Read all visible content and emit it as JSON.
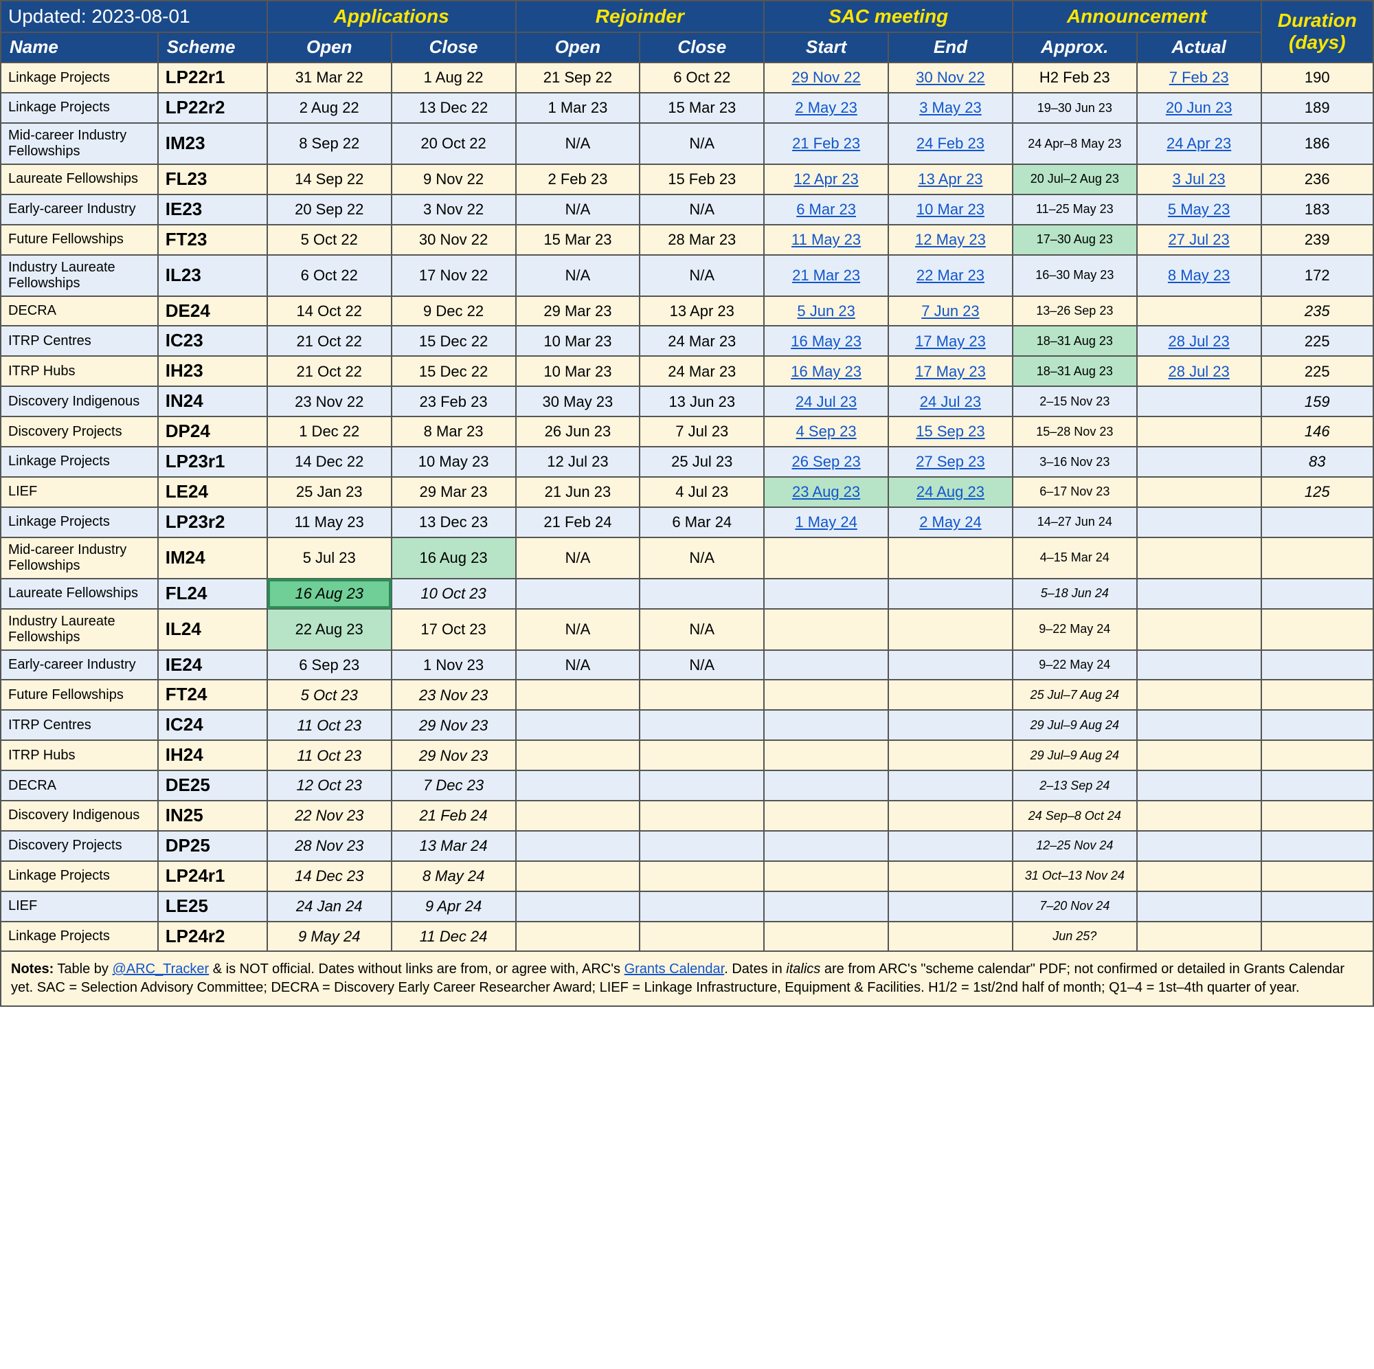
{
  "header": {
    "updated_label": "Updated: 2023-08-01",
    "groups": {
      "applications": "Applications",
      "rejoinder": "Rejoinder",
      "sac": "SAC meeting",
      "announcement": "Announcement",
      "duration": "Duration (days)"
    },
    "sub": {
      "name": "Name",
      "scheme": "Scheme",
      "open": "Open",
      "close": "Close",
      "start": "Start",
      "end": "End",
      "approx": "Approx.",
      "actual": "Actual"
    }
  },
  "colors": {
    "header_bg": "#1a4a8a",
    "row_cream": "#fdf5dc",
    "row_blue": "#e5eef8",
    "link": "#1155cc",
    "hl_light": "#b7e4c7",
    "hl_dark": "#6fcf97",
    "yellow": "#ffe600"
  },
  "footer": {
    "text_before": "Notes:",
    "text1": " Table by ",
    "link1": "@ARC_Tracker",
    "text2": " & is NOT official. Dates without links are from, or agree with, ARC's ",
    "link2": "Grants Calendar",
    "text3": ". Dates in ",
    "italics_word": "italics",
    "text4": " are from ARC's \"scheme calendar\" PDF; not confirmed or detailed in Grants Calendar yet. SAC = Selection Advisory Committee; DECRA = Discovery Early Career Researcher Award; LIEF = Linkage Infrastructure, Equipment & Facilities. H1/2 = 1st/2nd half of month; Q1–4 = 1st–4th quarter of year."
  },
  "rows": [
    {
      "row": "cream",
      "name": "Linkage Projects",
      "scheme": "LP22r1",
      "cells": [
        {
          "t": "31 Mar 22"
        },
        {
          "t": "1 Aug 22"
        },
        {
          "t": "21 Sep 22"
        },
        {
          "t": "6 Oct 22"
        },
        {
          "t": "29 Nov 22",
          "link": true
        },
        {
          "t": "30 Nov 22",
          "link": true
        },
        {
          "t": "H2 Feb 23"
        },
        {
          "t": "7 Feb 23",
          "link": true
        },
        {
          "t": "190"
        }
      ]
    },
    {
      "row": "blue",
      "name": "Linkage Projects",
      "scheme": "LP22r2",
      "cells": [
        {
          "t": "2 Aug 22"
        },
        {
          "t": "13 Dec 22"
        },
        {
          "t": "1 Mar 23"
        },
        {
          "t": "15 Mar 23"
        },
        {
          "t": "2 May 23",
          "link": true
        },
        {
          "t": "3 May 23",
          "link": true
        },
        {
          "t": "19–30 Jun 23",
          "small": true
        },
        {
          "t": "20 Jun 23",
          "link": true
        },
        {
          "t": "189"
        }
      ]
    },
    {
      "row": "blue",
      "name": "Mid-career Industry Fellowships",
      "scheme": "IM23",
      "cells": [
        {
          "t": "8 Sep 22"
        },
        {
          "t": "20 Oct 22"
        },
        {
          "t": "N/A"
        },
        {
          "t": "N/A"
        },
        {
          "t": "21 Feb 23",
          "link": true
        },
        {
          "t": "24 Feb 23",
          "link": true
        },
        {
          "t": "24 Apr–8 May 23",
          "small": true
        },
        {
          "t": "24 Apr 23",
          "link": true
        },
        {
          "t": "186"
        }
      ]
    },
    {
      "row": "cream",
      "name": "Laureate Fellowships",
      "scheme": "FL23",
      "cells": [
        {
          "t": "14 Sep 22"
        },
        {
          "t": "9 Nov 22"
        },
        {
          "t": "2 Feb 23"
        },
        {
          "t": "15 Feb 23"
        },
        {
          "t": "12 Apr 23",
          "link": true
        },
        {
          "t": "13 Apr 23",
          "link": true
        },
        {
          "t": "20 Jul–2 Aug 23",
          "small": true,
          "hl": "light"
        },
        {
          "t": "3 Jul 23",
          "link": true
        },
        {
          "t": "236"
        }
      ]
    },
    {
      "row": "blue",
      "name": "Early-career Industry",
      "scheme": "IE23",
      "cells": [
        {
          "t": "20 Sep 22"
        },
        {
          "t": "3 Nov 22"
        },
        {
          "t": "N/A"
        },
        {
          "t": "N/A"
        },
        {
          "t": "6 Mar 23",
          "link": true
        },
        {
          "t": "10 Mar 23",
          "link": true
        },
        {
          "t": "11–25 May 23",
          "small": true
        },
        {
          "t": "5 May 23",
          "link": true
        },
        {
          "t": "183"
        }
      ]
    },
    {
      "row": "cream",
      "name": "Future Fellowships",
      "scheme": "FT23",
      "cells": [
        {
          "t": "5 Oct 22"
        },
        {
          "t": "30 Nov 22"
        },
        {
          "t": "15 Mar 23"
        },
        {
          "t": "28 Mar 23"
        },
        {
          "t": "11 May 23",
          "link": true
        },
        {
          "t": "12 May 23",
          "link": true
        },
        {
          "t": "17–30 Aug 23",
          "small": true,
          "hl": "light"
        },
        {
          "t": "27 Jul 23",
          "link": true
        },
        {
          "t": "239"
        }
      ]
    },
    {
      "row": "blue",
      "name": "Industry Laureate Fellowships",
      "scheme": "IL23",
      "cells": [
        {
          "t": "6 Oct 22"
        },
        {
          "t": "17 Nov 22"
        },
        {
          "t": "N/A"
        },
        {
          "t": "N/A"
        },
        {
          "t": "21 Mar 23",
          "link": true
        },
        {
          "t": "22 Mar 23",
          "link": true
        },
        {
          "t": "16–30 May 23",
          "small": true
        },
        {
          "t": "8 May 23",
          "link": true
        },
        {
          "t": "172"
        }
      ]
    },
    {
      "row": "cream",
      "name": "DECRA",
      "scheme": "DE24",
      "cells": [
        {
          "t": "14 Oct 22"
        },
        {
          "t": "9 Dec 22"
        },
        {
          "t": "29 Mar 23"
        },
        {
          "t": "13 Apr 23"
        },
        {
          "t": "5 Jun 23",
          "link": true
        },
        {
          "t": "7 Jun 23",
          "link": true
        },
        {
          "t": "13–26 Sep 23",
          "small": true
        },
        {
          "t": ""
        },
        {
          "t": "235",
          "italic": true
        }
      ]
    },
    {
      "row": "blue",
      "name": "ITRP Centres",
      "scheme": "IC23",
      "cells": [
        {
          "t": "21 Oct 22"
        },
        {
          "t": "15 Dec 22"
        },
        {
          "t": "10 Mar 23"
        },
        {
          "t": "24 Mar 23"
        },
        {
          "t": "16 May 23",
          "link": true
        },
        {
          "t": "17 May 23",
          "link": true
        },
        {
          "t": "18–31 Aug 23",
          "small": true,
          "hl": "light"
        },
        {
          "t": "28 Jul 23",
          "link": true
        },
        {
          "t": "225"
        }
      ]
    },
    {
      "row": "cream",
      "name": "ITRP Hubs",
      "scheme": "IH23",
      "cells": [
        {
          "t": "21 Oct 22"
        },
        {
          "t": "15 Dec 22"
        },
        {
          "t": "10 Mar 23"
        },
        {
          "t": "24 Mar 23"
        },
        {
          "t": "16 May 23",
          "link": true
        },
        {
          "t": "17 May 23",
          "link": true
        },
        {
          "t": "18–31 Aug 23",
          "small": true,
          "hl": "light"
        },
        {
          "t": "28 Jul 23",
          "link": true
        },
        {
          "t": "225"
        }
      ]
    },
    {
      "row": "blue",
      "name": "Discovery Indigenous",
      "scheme": "IN24",
      "cells": [
        {
          "t": "23 Nov 22"
        },
        {
          "t": "23 Feb 23"
        },
        {
          "t": "30 May 23"
        },
        {
          "t": "13 Jun 23"
        },
        {
          "t": "24 Jul 23",
          "link": true
        },
        {
          "t": "24 Jul 23",
          "link": true
        },
        {
          "t": "2–15 Nov 23",
          "small": true
        },
        {
          "t": ""
        },
        {
          "t": "159",
          "italic": true
        }
      ]
    },
    {
      "row": "cream",
      "name": "Discovery Projects",
      "scheme": "DP24",
      "cells": [
        {
          "t": "1 Dec 22"
        },
        {
          "t": "8 Mar 23"
        },
        {
          "t": "26 Jun 23"
        },
        {
          "t": "7 Jul 23"
        },
        {
          "t": "4 Sep 23",
          "link": true
        },
        {
          "t": "15 Sep 23",
          "link": true
        },
        {
          "t": "15–28 Nov 23",
          "small": true
        },
        {
          "t": ""
        },
        {
          "t": "146",
          "italic": true
        }
      ]
    },
    {
      "row": "blue",
      "name": "Linkage Projects",
      "scheme": "LP23r1",
      "cells": [
        {
          "t": "14 Dec 22"
        },
        {
          "t": "10 May 23"
        },
        {
          "t": "12 Jul 23"
        },
        {
          "t": "25 Jul 23"
        },
        {
          "t": "26 Sep 23",
          "link": true
        },
        {
          "t": "27 Sep 23",
          "link": true
        },
        {
          "t": "3–16 Nov 23",
          "small": true
        },
        {
          "t": ""
        },
        {
          "t": "83",
          "italic": true
        }
      ]
    },
    {
      "row": "cream",
      "name": "LIEF",
      "scheme": "LE24",
      "cells": [
        {
          "t": "25 Jan 23"
        },
        {
          "t": "29 Mar 23"
        },
        {
          "t": "21 Jun 23"
        },
        {
          "t": "4 Jul 23"
        },
        {
          "t": "23 Aug 23",
          "link": true,
          "hl": "light"
        },
        {
          "t": "24 Aug 23",
          "link": true,
          "hl": "light"
        },
        {
          "t": "6–17 Nov 23",
          "small": true
        },
        {
          "t": ""
        },
        {
          "t": "125",
          "italic": true
        }
      ]
    },
    {
      "row": "blue",
      "name": "Linkage Projects",
      "scheme": "LP23r2",
      "cells": [
        {
          "t": "11 May 23"
        },
        {
          "t": "13 Dec 23"
        },
        {
          "t": "21 Feb 24"
        },
        {
          "t": "6 Mar 24"
        },
        {
          "t": "1 May 24",
          "link": true
        },
        {
          "t": "2 May 24",
          "link": true
        },
        {
          "t": "14–27 Jun 24",
          "small": true
        },
        {
          "t": ""
        },
        {
          "t": ""
        }
      ]
    },
    {
      "row": "cream",
      "name": "Mid-career Industry Fellowships",
      "scheme": "IM24",
      "cells": [
        {
          "t": "5 Jul 23"
        },
        {
          "t": "16 Aug 23",
          "hl": "light"
        },
        {
          "t": "N/A"
        },
        {
          "t": "N/A"
        },
        {
          "t": ""
        },
        {
          "t": ""
        },
        {
          "t": "4–15 Mar 24",
          "small": true
        },
        {
          "t": ""
        },
        {
          "t": ""
        }
      ]
    },
    {
      "row": "blue",
      "name": "Laureate Fellowships",
      "scheme": "FL24",
      "cells": [
        {
          "t": "16 Aug 23",
          "italic": true,
          "hl": "dark"
        },
        {
          "t": "10 Oct 23",
          "italic": true
        },
        {
          "t": ""
        },
        {
          "t": ""
        },
        {
          "t": ""
        },
        {
          "t": ""
        },
        {
          "t": "5–18 Jun 24",
          "small": true,
          "italic": true
        },
        {
          "t": ""
        },
        {
          "t": ""
        }
      ]
    },
    {
      "row": "cream",
      "name": "Industry Laureate Fellowships",
      "scheme": "IL24",
      "cells": [
        {
          "t": "22 Aug 23",
          "hl": "light"
        },
        {
          "t": "17 Oct 23"
        },
        {
          "t": "N/A"
        },
        {
          "t": "N/A"
        },
        {
          "t": ""
        },
        {
          "t": ""
        },
        {
          "t": "9–22 May 24",
          "small": true
        },
        {
          "t": ""
        },
        {
          "t": ""
        }
      ]
    },
    {
      "row": "blue",
      "name": "Early-career Industry",
      "scheme": "IE24",
      "cells": [
        {
          "t": "6 Sep 23"
        },
        {
          "t": "1 Nov 23"
        },
        {
          "t": "N/A"
        },
        {
          "t": "N/A"
        },
        {
          "t": ""
        },
        {
          "t": ""
        },
        {
          "t": "9–22 May 24",
          "small": true
        },
        {
          "t": ""
        },
        {
          "t": ""
        }
      ]
    },
    {
      "row": "cream",
      "name": "Future Fellowships",
      "scheme": "FT24",
      "cells": [
        {
          "t": "5 Oct 23",
          "italic": true
        },
        {
          "t": "23 Nov 23",
          "italic": true
        },
        {
          "t": ""
        },
        {
          "t": ""
        },
        {
          "t": ""
        },
        {
          "t": ""
        },
        {
          "t": "25 Jul–7 Aug 24",
          "small": true,
          "italic": true
        },
        {
          "t": ""
        },
        {
          "t": ""
        }
      ]
    },
    {
      "row": "blue",
      "name": "ITRP Centres",
      "scheme": "IC24",
      "cells": [
        {
          "t": "11 Oct 23",
          "italic": true
        },
        {
          "t": "29 Nov 23",
          "italic": true
        },
        {
          "t": ""
        },
        {
          "t": ""
        },
        {
          "t": ""
        },
        {
          "t": ""
        },
        {
          "t": "29 Jul–9 Aug 24",
          "small": true,
          "italic": true
        },
        {
          "t": ""
        },
        {
          "t": ""
        }
      ]
    },
    {
      "row": "cream",
      "name": "ITRP Hubs",
      "scheme": "IH24",
      "cells": [
        {
          "t": "11 Oct 23",
          "italic": true
        },
        {
          "t": "29 Nov 23",
          "italic": true
        },
        {
          "t": ""
        },
        {
          "t": ""
        },
        {
          "t": ""
        },
        {
          "t": ""
        },
        {
          "t": "29 Jul–9 Aug 24",
          "small": true,
          "italic": true
        },
        {
          "t": ""
        },
        {
          "t": ""
        }
      ]
    },
    {
      "row": "blue",
      "name": "DECRA",
      "scheme": "DE25",
      "cells": [
        {
          "t": "12 Oct 23",
          "italic": true
        },
        {
          "t": "7 Dec 23",
          "italic": true
        },
        {
          "t": ""
        },
        {
          "t": ""
        },
        {
          "t": ""
        },
        {
          "t": ""
        },
        {
          "t": "2–13 Sep 24",
          "small": true,
          "italic": true
        },
        {
          "t": ""
        },
        {
          "t": ""
        }
      ]
    },
    {
      "row": "cream",
      "name": "Discovery Indigenous",
      "scheme": "IN25",
      "cells": [
        {
          "t": "22 Nov 23",
          "italic": true
        },
        {
          "t": "21 Feb 24",
          "italic": true
        },
        {
          "t": ""
        },
        {
          "t": ""
        },
        {
          "t": ""
        },
        {
          "t": ""
        },
        {
          "t": "24 Sep–8 Oct 24",
          "small": true,
          "italic": true
        },
        {
          "t": ""
        },
        {
          "t": ""
        }
      ]
    },
    {
      "row": "blue",
      "name": "Discovery Projects",
      "scheme": "DP25",
      "cells": [
        {
          "t": "28 Nov 23",
          "italic": true
        },
        {
          "t": "13 Mar 24",
          "italic": true
        },
        {
          "t": ""
        },
        {
          "t": ""
        },
        {
          "t": ""
        },
        {
          "t": ""
        },
        {
          "t": "12–25 Nov 24",
          "small": true,
          "italic": true
        },
        {
          "t": ""
        },
        {
          "t": ""
        }
      ]
    },
    {
      "row": "cream",
      "name": "Linkage Projects",
      "scheme": "LP24r1",
      "cells": [
        {
          "t": "14 Dec 23",
          "italic": true
        },
        {
          "t": "8 May 24",
          "italic": true
        },
        {
          "t": ""
        },
        {
          "t": ""
        },
        {
          "t": ""
        },
        {
          "t": ""
        },
        {
          "t": "31 Oct–13 Nov 24",
          "small": true,
          "italic": true
        },
        {
          "t": ""
        },
        {
          "t": ""
        }
      ]
    },
    {
      "row": "blue",
      "name": "LIEF",
      "scheme": "LE25",
      "cells": [
        {
          "t": "24 Jan 24",
          "italic": true
        },
        {
          "t": "9 Apr 24",
          "italic": true
        },
        {
          "t": ""
        },
        {
          "t": ""
        },
        {
          "t": ""
        },
        {
          "t": ""
        },
        {
          "t": "7–20 Nov 24",
          "small": true,
          "italic": true
        },
        {
          "t": ""
        },
        {
          "t": ""
        }
      ]
    },
    {
      "row": "cream",
      "name": "Linkage Projects",
      "scheme": "LP24r2",
      "cells": [
        {
          "t": "9 May 24",
          "italic": true
        },
        {
          "t": "11 Dec 24",
          "italic": true
        },
        {
          "t": ""
        },
        {
          "t": ""
        },
        {
          "t": ""
        },
        {
          "t": ""
        },
        {
          "t": "Jun 25?",
          "small": true,
          "italic": true
        },
        {
          "t": ""
        },
        {
          "t": ""
        }
      ]
    }
  ]
}
